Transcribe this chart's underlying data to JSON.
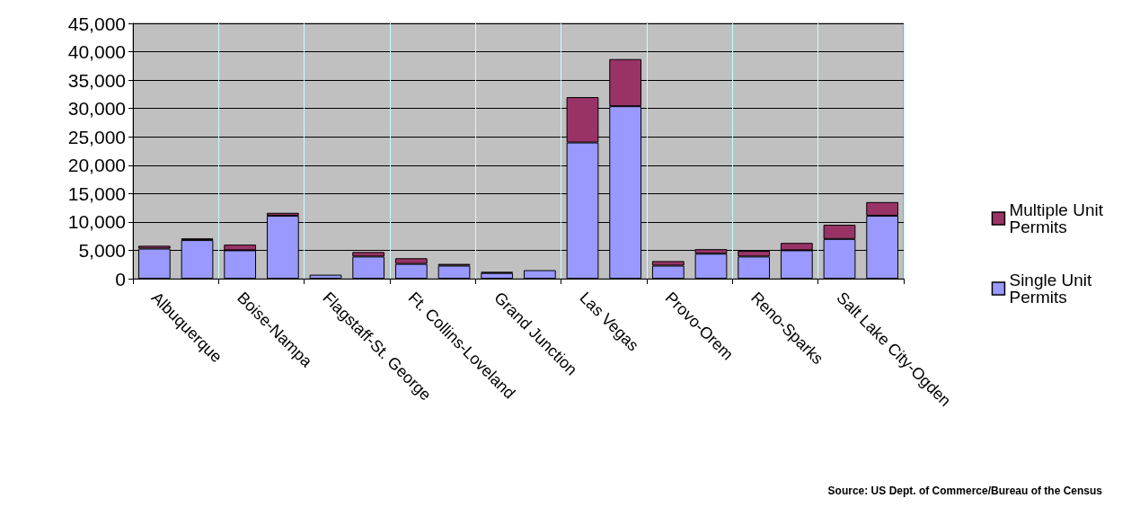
{
  "chart_data": {
    "type": "bar",
    "stacked": true,
    "categories": [
      "Albuquerque",
      null,
      "Boise-Nampa",
      null,
      "Flagstaff-St. George",
      null,
      "Ft. Collins-Loveland",
      null,
      "Grand Junction",
      null,
      "Las Vegas",
      null,
      "Provo-Orem",
      null,
      "Reno-Sparks",
      null,
      "Salt Lake City-Ogden",
      null
    ],
    "series": [
      {
        "name": "Single Unit Permits",
        "color": "#9999ff",
        "values": [
          5300,
          6800,
          5000,
          11100,
          700,
          3900,
          2600,
          2300,
          1000,
          1500,
          24000,
          30400,
          2300,
          4400,
          3900,
          5000,
          7000,
          11100
        ]
      },
      {
        "name": "Multiple Unit Permits",
        "color": "#993366",
        "values": [
          500,
          300,
          1000,
          500,
          null,
          800,
          1000,
          300,
          200,
          null,
          8000,
          8300,
          800,
          800,
          1000,
          1300,
          2500,
          2400
        ]
      }
    ],
    "ylim": [
      0,
      45000
    ],
    "yticks": [
      0,
      {
        "value": 5000,
        "label": "5,000"
      },
      {
        "value": 10000,
        "label": "10,000"
      },
      {
        "value": 15000,
        "label": "15,000"
      },
      {
        "value": 20000,
        "label": "20,000"
      },
      {
        "value": 25000,
        "label": "25,000"
      },
      {
        "value": 30000,
        "label": "30,000"
      },
      {
        "value": 35000,
        "label": "35,000"
      },
      {
        "value": 40000,
        "label": "40,000"
      },
      {
        "value": 45000,
        "label": "45,000"
      }
    ],
    "grid": true,
    "legend": "right",
    "annotations": [
      "Source: US Dept. of Commerce/Bureau of the Census"
    ]
  }
}
